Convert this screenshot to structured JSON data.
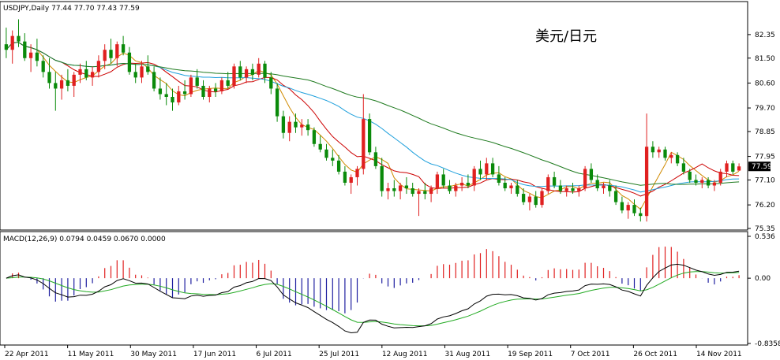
{
  "chart_data": [
    {
      "type": "candlestick",
      "header": "USDJPY,Daily  77.44 77.70 77.43 77.59",
      "annotation": "美元/日元",
      "last_price_label": "77.59",
      "last_price": 77.59,
      "ylim": [
        75.35,
        83.2
      ],
      "y_ticks": [
        82.35,
        81.5,
        80.6,
        79.7,
        78.85,
        77.95,
        77.1,
        76.2,
        75.35
      ],
      "y_tick_labels": [
        "82.35",
        "81.50",
        "80.60",
        "79.70",
        "78.85",
        "77.95",
        "77.10",
        "76.20",
        "75.35"
      ],
      "x_tick_labels": [
        "22 Apr 2011",
        "11 May 2011",
        "30 May 2011",
        "17 Jun 2011",
        "6 Jul 2011",
        "25 Jul 2011",
        "12 Aug 2011",
        "31 Aug 2011",
        "19 Sep 2011",
        "7 Oct 2011",
        "26 Oct 2011",
        "14 Nov 2011"
      ],
      "candles": [
        {
          "o": 82.0,
          "h": 82.6,
          "l": 81.5,
          "c": 81.8
        },
        {
          "o": 81.8,
          "h": 82.5,
          "l": 81.3,
          "c": 82.3
        },
        {
          "o": 82.3,
          "h": 82.9,
          "l": 81.9,
          "c": 82.1
        },
        {
          "o": 82.1,
          "h": 82.4,
          "l": 81.4,
          "c": 81.5
        },
        {
          "o": 81.5,
          "h": 82.0,
          "l": 81.0,
          "c": 81.7
        },
        {
          "o": 81.7,
          "h": 82.2,
          "l": 81.2,
          "c": 81.4
        },
        {
          "o": 81.4,
          "h": 81.6,
          "l": 80.8,
          "c": 81.0
        },
        {
          "o": 81.0,
          "h": 81.5,
          "l": 80.4,
          "c": 80.6
        },
        {
          "o": 80.6,
          "h": 81.0,
          "l": 79.6,
          "c": 80.4
        },
        {
          "o": 80.4,
          "h": 80.9,
          "l": 80.0,
          "c": 80.7
        },
        {
          "o": 80.7,
          "h": 81.1,
          "l": 80.3,
          "c": 80.5
        },
        {
          "o": 80.5,
          "h": 81.0,
          "l": 80.1,
          "c": 80.9
        },
        {
          "o": 80.9,
          "h": 81.3,
          "l": 80.6,
          "c": 81.1
        },
        {
          "o": 81.1,
          "h": 81.4,
          "l": 80.7,
          "c": 80.8
        },
        {
          "o": 80.8,
          "h": 81.2,
          "l": 80.5,
          "c": 81.0
        },
        {
          "o": 81.0,
          "h": 81.6,
          "l": 80.8,
          "c": 81.4
        },
        {
          "o": 81.4,
          "h": 82.0,
          "l": 81.1,
          "c": 81.8
        },
        {
          "o": 81.8,
          "h": 82.2,
          "l": 81.3,
          "c": 81.5
        },
        {
          "o": 81.5,
          "h": 82.1,
          "l": 81.2,
          "c": 82.0
        },
        {
          "o": 82.0,
          "h": 82.3,
          "l": 81.6,
          "c": 81.7
        },
        {
          "o": 81.7,
          "h": 81.9,
          "l": 80.9,
          "c": 81.0
        },
        {
          "o": 81.0,
          "h": 81.3,
          "l": 80.6,
          "c": 80.8
        },
        {
          "o": 80.8,
          "h": 81.4,
          "l": 80.6,
          "c": 81.2
        },
        {
          "o": 81.2,
          "h": 81.6,
          "l": 80.9,
          "c": 81.0
        },
        {
          "o": 81.0,
          "h": 81.2,
          "l": 80.3,
          "c": 80.4
        },
        {
          "o": 80.4,
          "h": 80.8,
          "l": 80.0,
          "c": 80.2
        },
        {
          "o": 80.2,
          "h": 80.6,
          "l": 79.8,
          "c": 80.1
        },
        {
          "o": 80.1,
          "h": 80.4,
          "l": 79.6,
          "c": 79.9
        },
        {
          "o": 79.9,
          "h": 80.5,
          "l": 79.8,
          "c": 80.3
        },
        {
          "o": 80.3,
          "h": 80.7,
          "l": 80.0,
          "c": 80.2
        },
        {
          "o": 80.2,
          "h": 80.9,
          "l": 80.1,
          "c": 80.8
        },
        {
          "o": 80.8,
          "h": 81.1,
          "l": 80.4,
          "c": 80.5
        },
        {
          "o": 80.5,
          "h": 80.7,
          "l": 80.0,
          "c": 80.1
        },
        {
          "o": 80.1,
          "h": 80.5,
          "l": 79.9,
          "c": 80.4
        },
        {
          "o": 80.4,
          "h": 80.6,
          "l": 80.1,
          "c": 80.3
        },
        {
          "o": 80.3,
          "h": 80.8,
          "l": 80.2,
          "c": 80.7
        },
        {
          "o": 80.7,
          "h": 81.0,
          "l": 80.4,
          "c": 80.5
        },
        {
          "o": 80.5,
          "h": 81.3,
          "l": 80.4,
          "c": 81.2
        },
        {
          "o": 81.2,
          "h": 81.4,
          "l": 80.7,
          "c": 80.8
        },
        {
          "o": 80.8,
          "h": 81.2,
          "l": 80.6,
          "c": 81.1
        },
        {
          "o": 81.1,
          "h": 81.3,
          "l": 80.7,
          "c": 80.9
        },
        {
          "o": 80.9,
          "h": 81.5,
          "l": 80.8,
          "c": 81.3
        },
        {
          "o": 81.3,
          "h": 81.4,
          "l": 80.6,
          "c": 80.8
        },
        {
          "o": 80.8,
          "h": 81.0,
          "l": 80.2,
          "c": 80.4
        },
        {
          "o": 80.4,
          "h": 80.6,
          "l": 79.2,
          "c": 79.4
        },
        {
          "o": 79.4,
          "h": 79.6,
          "l": 78.6,
          "c": 78.8
        },
        {
          "o": 78.8,
          "h": 79.4,
          "l": 78.5,
          "c": 79.2
        },
        {
          "o": 79.2,
          "h": 79.5,
          "l": 78.8,
          "c": 79.0
        },
        {
          "o": 79.0,
          "h": 79.3,
          "l": 78.7,
          "c": 79.1
        },
        {
          "o": 79.1,
          "h": 79.3,
          "l": 78.7,
          "c": 78.9
        },
        {
          "o": 78.9,
          "h": 79.0,
          "l": 78.3,
          "c": 78.4
        },
        {
          "o": 78.4,
          "h": 78.7,
          "l": 78.1,
          "c": 78.2
        },
        {
          "o": 78.2,
          "h": 78.4,
          "l": 77.8,
          "c": 77.9
        },
        {
          "o": 77.9,
          "h": 78.2,
          "l": 77.6,
          "c": 77.8
        },
        {
          "o": 77.8,
          "h": 78.0,
          "l": 77.3,
          "c": 77.4
        },
        {
          "o": 77.4,
          "h": 77.6,
          "l": 76.9,
          "c": 77.0
        },
        {
          "o": 77.0,
          "h": 77.3,
          "l": 76.6,
          "c": 77.2
        },
        {
          "o": 77.2,
          "h": 77.6,
          "l": 76.9,
          "c": 77.5
        },
        {
          "o": 77.5,
          "h": 80.2,
          "l": 77.3,
          "c": 79.3
        },
        {
          "o": 79.3,
          "h": 79.5,
          "l": 78.0,
          "c": 78.1
        },
        {
          "o": 78.1,
          "h": 78.3,
          "l": 77.5,
          "c": 77.6
        },
        {
          "o": 77.6,
          "h": 77.9,
          "l": 76.5,
          "c": 76.7
        },
        {
          "o": 76.7,
          "h": 77.0,
          "l": 76.4,
          "c": 76.8
        },
        {
          "o": 76.8,
          "h": 77.1,
          "l": 76.5,
          "c": 76.7
        },
        {
          "o": 76.7,
          "h": 77.0,
          "l": 76.4,
          "c": 76.9
        },
        {
          "o": 76.9,
          "h": 77.2,
          "l": 76.6,
          "c": 76.8
        },
        {
          "o": 76.8,
          "h": 77.0,
          "l": 76.5,
          "c": 76.6
        },
        {
          "o": 76.6,
          "h": 76.8,
          "l": 75.8,
          "c": 76.7
        },
        {
          "o": 76.7,
          "h": 77.0,
          "l": 76.4,
          "c": 76.6
        },
        {
          "o": 76.6,
          "h": 76.9,
          "l": 76.3,
          "c": 76.8
        },
        {
          "o": 76.8,
          "h": 77.4,
          "l": 76.6,
          "c": 77.3
        },
        {
          "o": 77.3,
          "h": 77.5,
          "l": 76.8,
          "c": 76.9
        },
        {
          "o": 76.9,
          "h": 77.1,
          "l": 76.6,
          "c": 76.7
        },
        {
          "o": 76.7,
          "h": 77.0,
          "l": 76.5,
          "c": 76.9
        },
        {
          "o": 76.9,
          "h": 77.2,
          "l": 76.7,
          "c": 77.0
        },
        {
          "o": 77.0,
          "h": 77.3,
          "l": 76.8,
          "c": 76.9
        },
        {
          "o": 76.9,
          "h": 77.6,
          "l": 76.7,
          "c": 77.5
        },
        {
          "o": 77.5,
          "h": 77.8,
          "l": 77.1,
          "c": 77.3
        },
        {
          "o": 77.3,
          "h": 77.9,
          "l": 77.1,
          "c": 77.7
        },
        {
          "o": 77.7,
          "h": 77.9,
          "l": 77.2,
          "c": 77.3
        },
        {
          "o": 77.3,
          "h": 77.6,
          "l": 76.9,
          "c": 77.0
        },
        {
          "o": 77.0,
          "h": 77.2,
          "l": 76.7,
          "c": 76.8
        },
        {
          "o": 76.8,
          "h": 77.0,
          "l": 76.6,
          "c": 76.9
        },
        {
          "o": 76.9,
          "h": 77.1,
          "l": 76.5,
          "c": 76.6
        },
        {
          "o": 76.6,
          "h": 76.8,
          "l": 76.2,
          "c": 76.3
        },
        {
          "o": 76.3,
          "h": 76.6,
          "l": 76.0,
          "c": 76.5
        },
        {
          "o": 76.5,
          "h": 76.7,
          "l": 76.1,
          "c": 76.2
        },
        {
          "o": 76.2,
          "h": 76.8,
          "l": 76.1,
          "c": 76.7
        },
        {
          "o": 76.7,
          "h": 77.3,
          "l": 76.6,
          "c": 77.2
        },
        {
          "o": 77.2,
          "h": 77.4,
          "l": 76.8,
          "c": 76.9
        },
        {
          "o": 76.9,
          "h": 77.1,
          "l": 76.6,
          "c": 76.7
        },
        {
          "o": 76.7,
          "h": 76.9,
          "l": 76.5,
          "c": 76.8
        },
        {
          "o": 76.8,
          "h": 77.0,
          "l": 76.6,
          "c": 76.7
        },
        {
          "o": 76.7,
          "h": 76.9,
          "l": 76.5,
          "c": 76.8
        },
        {
          "o": 76.8,
          "h": 77.6,
          "l": 76.7,
          "c": 77.5
        },
        {
          "o": 77.5,
          "h": 77.7,
          "l": 77.0,
          "c": 77.1
        },
        {
          "o": 77.1,
          "h": 77.3,
          "l": 76.7,
          "c": 76.8
        },
        {
          "o": 76.8,
          "h": 77.0,
          "l": 76.6,
          "c": 76.9
        },
        {
          "o": 76.9,
          "h": 77.1,
          "l": 76.5,
          "c": 76.7
        },
        {
          "o": 76.7,
          "h": 76.9,
          "l": 76.2,
          "c": 76.3
        },
        {
          "o": 76.3,
          "h": 76.5,
          "l": 75.9,
          "c": 76.0
        },
        {
          "o": 76.0,
          "h": 76.3,
          "l": 75.7,
          "c": 76.2
        },
        {
          "o": 76.2,
          "h": 76.4,
          "l": 75.8,
          "c": 75.9
        },
        {
          "o": 75.9,
          "h": 76.1,
          "l": 75.6,
          "c": 75.8
        },
        {
          "o": 75.8,
          "h": 79.5,
          "l": 75.6,
          "c": 78.3
        },
        {
          "o": 78.3,
          "h": 78.5,
          "l": 77.9,
          "c": 78.1
        },
        {
          "o": 78.1,
          "h": 78.3,
          "l": 77.9,
          "c": 78.2
        },
        {
          "o": 78.2,
          "h": 78.3,
          "l": 77.8,
          "c": 77.9
        },
        {
          "o": 77.9,
          "h": 78.1,
          "l": 77.7,
          "c": 78.0
        },
        {
          "o": 78.0,
          "h": 78.1,
          "l": 77.6,
          "c": 77.7
        },
        {
          "o": 77.7,
          "h": 77.9,
          "l": 77.3,
          "c": 77.4
        },
        {
          "o": 77.4,
          "h": 77.5,
          "l": 77.0,
          "c": 77.1
        },
        {
          "o": 77.1,
          "h": 77.3,
          "l": 76.9,
          "c": 77.0
        },
        {
          "o": 77.0,
          "h": 77.2,
          "l": 76.8,
          "c": 77.1
        },
        {
          "o": 77.1,
          "h": 77.2,
          "l": 76.8,
          "c": 76.9
        },
        {
          "o": 76.9,
          "h": 77.1,
          "l": 76.7,
          "c": 77.0
        },
        {
          "o": 77.0,
          "h": 77.5,
          "l": 76.9,
          "c": 77.4
        },
        {
          "o": 77.4,
          "h": 77.8,
          "l": 77.2,
          "c": 77.7
        },
        {
          "o": 77.7,
          "h": 77.8,
          "l": 77.3,
          "c": 77.4
        },
        {
          "o": 77.44,
          "h": 77.7,
          "l": 77.43,
          "c": 77.59
        }
      ],
      "moving_averages": [
        {
          "color": "#d08a00",
          "period": 5
        },
        {
          "color": "#cc0000",
          "period": 10
        },
        {
          "color": "#1fa0dc",
          "period": 25
        },
        {
          "color": "#1e7a1e",
          "period": 50
        }
      ],
      "colors": {
        "up": "#e02020",
        "down": "#0a8a0a",
        "grid": "#000000"
      }
    },
    {
      "type": "macd",
      "header": "MACD(12,26,9) 0.0794 0.0459 0.0670 0.0000",
      "ylim": [
        -0.8358,
        0.536
      ],
      "y_ticks": [
        0.536,
        0.0,
        -0.8358
      ],
      "y_tick_labels": [
        "0.536",
        "0.00",
        "-0.8358"
      ],
      "colors": {
        "positive": "#e02020",
        "negative": "#2020a0",
        "macd_line": "#000000",
        "signal_line": "#22aa22"
      }
    }
  ]
}
